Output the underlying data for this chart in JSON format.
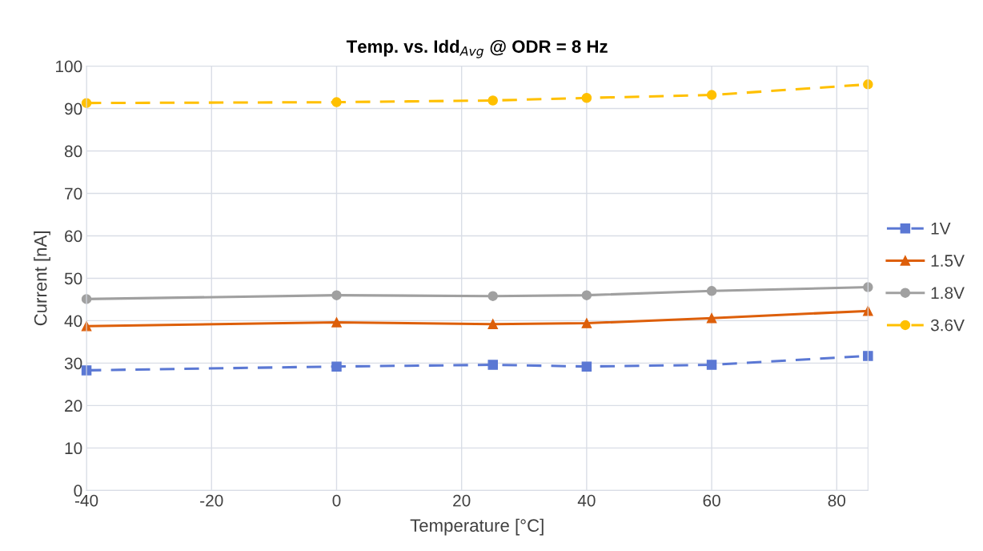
{
  "chart_data": {
    "type": "line",
    "title": "Temp. vs. Idd$_{Avg}$ @ ODR = 8 Hz",
    "xlabel": "Temperature [°C]",
    "ylabel": "Current [nA]",
    "x": [
      -40,
      0,
      25,
      40,
      60,
      85
    ],
    "series": [
      {
        "name": "1V",
        "color": "#5b78d4",
        "marker": "square",
        "line_style": "dashed",
        "values": [
          28.3,
          29.2,
          29.6,
          29.2,
          29.6,
          31.7
        ]
      },
      {
        "name": "1.5V",
        "color": "#dd5f0a",
        "marker": "triangle",
        "line_style": "solid",
        "values": [
          38.7,
          39.6,
          39.2,
          39.4,
          40.6,
          42.3
        ]
      },
      {
        "name": "1.8V",
        "color": "#a0a0a0",
        "marker": "circle",
        "line_style": "solid",
        "values": [
          45.1,
          46.0,
          45.8,
          46.0,
          47.0,
          47.9
        ]
      },
      {
        "name": "3.6V",
        "color": "#ffc000",
        "marker": "circle",
        "line_style": "dashed",
        "values": [
          91.3,
          91.5,
          91.9,
          92.5,
          93.2,
          95.7
        ]
      }
    ],
    "xlim": [
      -40,
      85
    ],
    "xticks": [
      -40,
      -20,
      0,
      20,
      40,
      60,
      80
    ],
    "ylim": [
      0,
      100
    ],
    "yticks": [
      0,
      10,
      20,
      30,
      40,
      50,
      60,
      70,
      80,
      90,
      100
    ],
    "grid": true,
    "legend": "right"
  }
}
